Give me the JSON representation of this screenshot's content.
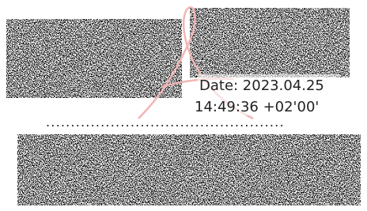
{
  "signature": {
    "date_line": "Date: 2023.04.25",
    "time_line": "14:49:36 +02'00'",
    "separator": "................................................"
  }
}
